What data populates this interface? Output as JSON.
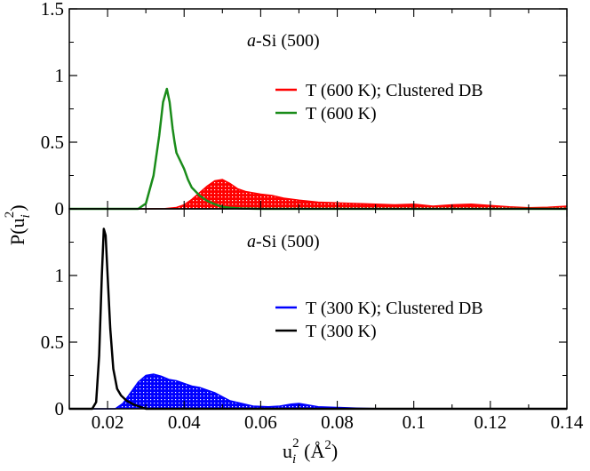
{
  "chart_data": [
    {
      "type": "area",
      "panel": "top",
      "annotation_italic": "a",
      "annotation_rest": "-Si (500)",
      "xlim": [
        0.01,
        0.14
      ],
      "ylim": [
        0,
        1.5
      ],
      "yticks": [
        "0",
        "0.5",
        "1",
        "1.5"
      ],
      "series": [
        {
          "name": "T (600 K); Clustered DB",
          "color": "#ff0000",
          "style": "filled-hatched",
          "x": [
            0.01,
            0.03,
            0.035,
            0.038,
            0.04,
            0.042,
            0.044,
            0.046,
            0.048,
            0.05,
            0.052,
            0.054,
            0.056,
            0.058,
            0.06,
            0.063,
            0.066,
            0.07,
            0.075,
            0.08,
            0.085,
            0.09,
            0.095,
            0.1,
            0.105,
            0.11,
            0.115,
            0.12,
            0.125,
            0.13,
            0.135,
            0.14
          ],
          "y": [
            0,
            0,
            0.002,
            0.01,
            0.03,
            0.07,
            0.12,
            0.17,
            0.21,
            0.22,
            0.19,
            0.15,
            0.13,
            0.12,
            0.11,
            0.1,
            0.08,
            0.065,
            0.05,
            0.045,
            0.04,
            0.035,
            0.03,
            0.035,
            0.02,
            0.03,
            0.035,
            0.025,
            0.015,
            0.008,
            0.012,
            0.02
          ]
        },
        {
          "name": "T (600 K)",
          "color": "#1a8c1a",
          "style": "line",
          "x": [
            0.01,
            0.028,
            0.03,
            0.032,
            0.0335,
            0.0345,
            0.0355,
            0.0362,
            0.037,
            0.0375,
            0.038,
            0.039,
            0.04,
            0.041,
            0.042,
            0.043,
            0.044,
            0.046,
            0.048,
            0.05,
            0.052,
            0.055,
            0.06,
            0.14
          ],
          "y": [
            0,
            0,
            0.04,
            0.25,
            0.55,
            0.8,
            0.9,
            0.8,
            0.6,
            0.5,
            0.42,
            0.36,
            0.3,
            0.22,
            0.16,
            0.13,
            0.1,
            0.06,
            0.035,
            0.015,
            0.008,
            0.003,
            0,
            0
          ]
        }
      ]
    },
    {
      "type": "area",
      "panel": "bottom",
      "annotation_italic": "a",
      "annotation_rest": "-Si (500)",
      "xlabel_main": "u",
      "xlabel_sub": "i",
      "xlabel_sup": "2",
      "xlabel_open": " (Å",
      "xlabel_sup2": "2",
      "xlabel_close": ")",
      "xlim": [
        0.01,
        0.14
      ],
      "ylim": [
        0,
        1.5
      ],
      "yticks": [
        "0",
        "0.5",
        "1"
      ],
      "xticks": [
        "0.02",
        "0.04",
        "0.06",
        "0.08",
        "0.1",
        "0.12",
        "0.14"
      ],
      "series": [
        {
          "name": "T (300 K); Clustered DB",
          "color": "#0000ff",
          "style": "filled-hatched",
          "x": [
            0.01,
            0.022,
            0.024,
            0.026,
            0.028,
            0.03,
            0.032,
            0.034,
            0.036,
            0.038,
            0.04,
            0.042,
            0.044,
            0.046,
            0.048,
            0.05,
            0.052,
            0.055,
            0.058,
            0.062,
            0.065,
            0.068,
            0.07,
            0.072,
            0.075,
            0.08,
            0.085,
            0.092,
            0.14
          ],
          "y": [
            0,
            0,
            0.04,
            0.12,
            0.2,
            0.25,
            0.26,
            0.245,
            0.22,
            0.21,
            0.19,
            0.17,
            0.16,
            0.14,
            0.12,
            0.09,
            0.06,
            0.04,
            0.02,
            0.015,
            0.02,
            0.035,
            0.04,
            0.03,
            0.015,
            0.01,
            0.005,
            0,
            0
          ]
        },
        {
          "name": "T (300 K)",
          "color": "#000000",
          "style": "line",
          "x": [
            0.01,
            0.016,
            0.017,
            0.0178,
            0.0185,
            0.019,
            0.0195,
            0.02,
            0.0207,
            0.0215,
            0.0225,
            0.0235,
            0.025,
            0.027,
            0.03,
            0.14
          ],
          "y": [
            0,
            0,
            0.05,
            0.4,
            1.0,
            1.35,
            1.3,
            1.0,
            0.6,
            0.3,
            0.15,
            0.1,
            0.06,
            0.03,
            0,
            0
          ]
        }
      ]
    }
  ],
  "shared_ylabel": {
    "main": "P(u",
    "sub": "i",
    "sup": "2",
    "close": ")"
  }
}
